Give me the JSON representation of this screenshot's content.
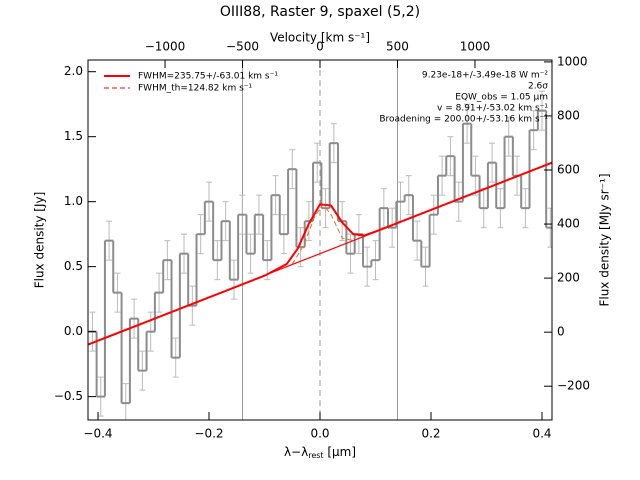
{
  "chart_data": {
    "type": "step",
    "title": "OIII88, Raster 9, spaxel (5,2)",
    "xlabel": {
      "main": "λ−λ",
      "sub": "rest",
      "unit": " [μm]"
    },
    "ylabel": "Flux density [Jy]",
    "y2label": "Flux density [MJy sr⁻¹]",
    "x2label": "Velocity [km s⁻¹]",
    "xlim": [
      -0.418,
      0.418
    ],
    "xticks": [
      {
        "value": -0.4,
        "label": "−0.4"
      },
      {
        "value": -0.2,
        "label": "−0.2"
      },
      {
        "value": 0,
        "label": "0.0"
      },
      {
        "value": 0.2,
        "label": "0.2"
      },
      {
        "value": 0.4,
        "label": "0.4"
      }
    ],
    "ylim": [
      -0.68,
      2.09
    ],
    "yticks": [
      {
        "value": -0.5,
        "label": "−0.5"
      },
      {
        "value": 0,
        "label": "0.0"
      },
      {
        "value": 0.5,
        "label": "0.5"
      },
      {
        "value": 1,
        "label": "1.0"
      },
      {
        "value": 1.5,
        "label": "1.5"
      },
      {
        "value": 2,
        "label": "2.0"
      }
    ],
    "y2lim": [
      -325,
      1007
    ],
    "y2ticks": [
      {
        "value": -200,
        "label": "−200"
      },
      0,
      200,
      400,
      600,
      800,
      1000
    ],
    "x2lim": [
      -1497,
      1497
    ],
    "x2ticks": [
      {
        "value": -1000,
        "label": "−1000"
      },
      {
        "value": -500,
        "label": "−500"
      },
      0,
      500,
      1000
    ],
    "vlines": [
      -500,
      500
    ],
    "zero_line": 0,
    "series": [
      {
        "style": "steps",
        "color": "#8c8c8c",
        "bin_width": 0.015,
        "error": 0.15,
        "x": [
          -0.41,
          -0.395,
          -0.38,
          -0.365,
          -0.35,
          -0.335,
          -0.32,
          -0.305,
          -0.29,
          -0.275,
          -0.26,
          -0.245,
          -0.23,
          -0.215,
          -0.2,
          -0.185,
          -0.17,
          -0.155,
          -0.14,
          -0.125,
          -0.11,
          -0.095,
          -0.08,
          -0.065,
          -0.05,
          -0.035,
          -0.02,
          -0.005,
          0.01,
          0.025,
          0.04,
          0.055,
          0.07,
          0.085,
          0.1,
          0.115,
          0.13,
          0.145,
          0.16,
          0.175,
          0.19,
          0.205,
          0.22,
          0.235,
          0.25,
          0.265,
          0.28,
          0.295,
          0.31,
          0.325,
          0.34,
          0.355,
          0.37,
          0.385,
          0.4,
          0.415
        ],
        "values": [
          0.0,
          -0.5,
          0.7,
          0.3,
          -0.55,
          0.1,
          -0.3,
          0.0,
          0.3,
          0.55,
          -0.2,
          0.6,
          0.2,
          0.75,
          1.0,
          0.55,
          0.85,
          0.4,
          0.9,
          0.6,
          0.9,
          0.55,
          1.05,
          0.75,
          1.25,
          0.65,
          0.85,
          1.3,
          0.95,
          1.45,
          0.85,
          0.6,
          0.75,
          0.5,
          0.55,
          0.95,
          0.8,
          1.0,
          1.05,
          0.7,
          0.5,
          0.9,
          1.2,
          1.35,
          1.0,
          1.6,
          1.2,
          0.95,
          1.3,
          0.95,
          1.5,
          1.2,
          0.95,
          1.55,
          1.7,
          0.8
        ]
      },
      {
        "style": "line",
        "color": "#ff0000",
        "width": 1.2,
        "x": [
          -0.418,
          0.418
        ],
        "values": [
          -0.1,
          1.3
        ]
      },
      {
        "style": "line",
        "color": "#e07020",
        "width": 1,
        "dash": true,
        "name": "FWHM_th=124.82 km s⁻¹",
        "x": [
          -0.05,
          -0.03,
          -0.01,
          0.005,
          0.02,
          0.04,
          0.06
        ],
        "values": [
          0.52,
          0.66,
          0.88,
          0.98,
          0.9,
          0.72,
          0.7
        ]
      },
      {
        "style": "line",
        "color": "#ff0000",
        "width": 2,
        "name": "FWHM=235.75+/-63.01 km s⁻¹",
        "x": [
          -0.418,
          -0.1,
          -0.06,
          -0.04,
          -0.02,
          0,
          0.02,
          0.04,
          0.06,
          0.08,
          0.1,
          0.418
        ],
        "values": [
          -0.1,
          0.43,
          0.52,
          0.64,
          0.83,
          0.98,
          0.97,
          0.84,
          0.75,
          0.74,
          0.77,
          1.3
        ]
      }
    ],
    "legend": [
      3,
      2
    ],
    "annotations": [
      "9.23e-18+/-3.49e-18 W m⁻²",
      "2.6σ",
      "EQW_obs = 1.05 μm",
      "v = 8.91+/-53.02 km s⁻¹",
      "Broadening = 200.00+/-53.16 km s⁻¹"
    ]
  }
}
